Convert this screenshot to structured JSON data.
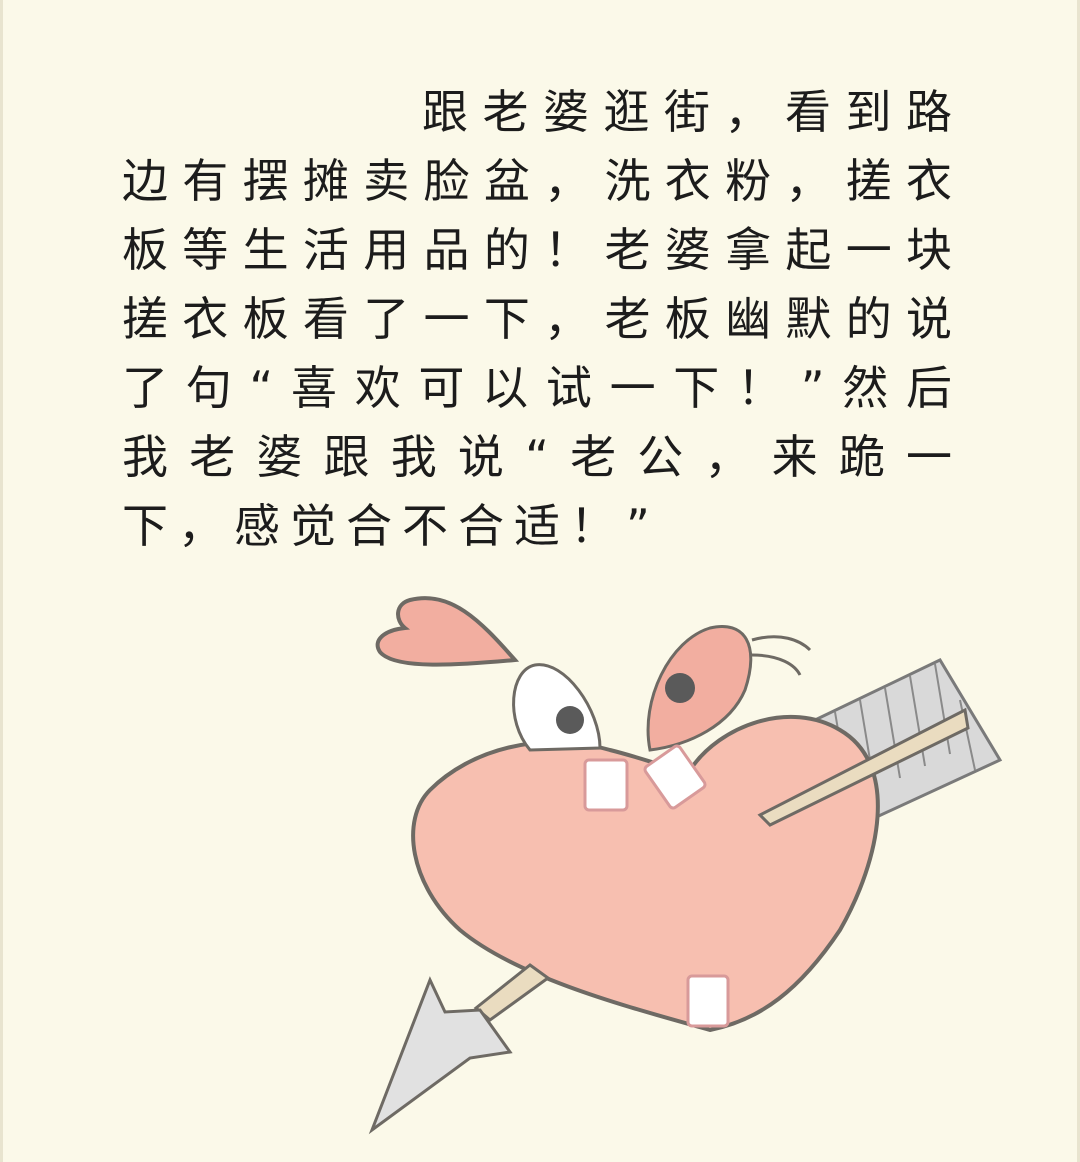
{
  "story": {
    "lines": [
      "跟老婆逛街，看到路",
      "边有摆摊卖脸盆，洗衣粉，搓衣",
      "板等生活用品的！老婆拿起一块",
      "搓衣板看了一下，老板幽默的说",
      "了句“喜欢可以试一下！”然后",
      "我老婆跟我说“老公，来跪一",
      "下，感觉合不合适！”"
    ]
  },
  "illustration": {
    "icon": "heart-with-arrow-icon",
    "colors": {
      "background": "#fbf9e9",
      "heart_fill": "#f7bfb0",
      "heart_stroke": "#6e6a64",
      "bow_pink": "#f2aea0",
      "arrow_shaft": "#eadcc0",
      "feather": "#d8d8d8",
      "arrowhead": "#e1e1e1",
      "eye_pupil": "#5a5a5a",
      "bandage": "#ffffff",
      "bandage_border": "#d89a9a"
    }
  }
}
